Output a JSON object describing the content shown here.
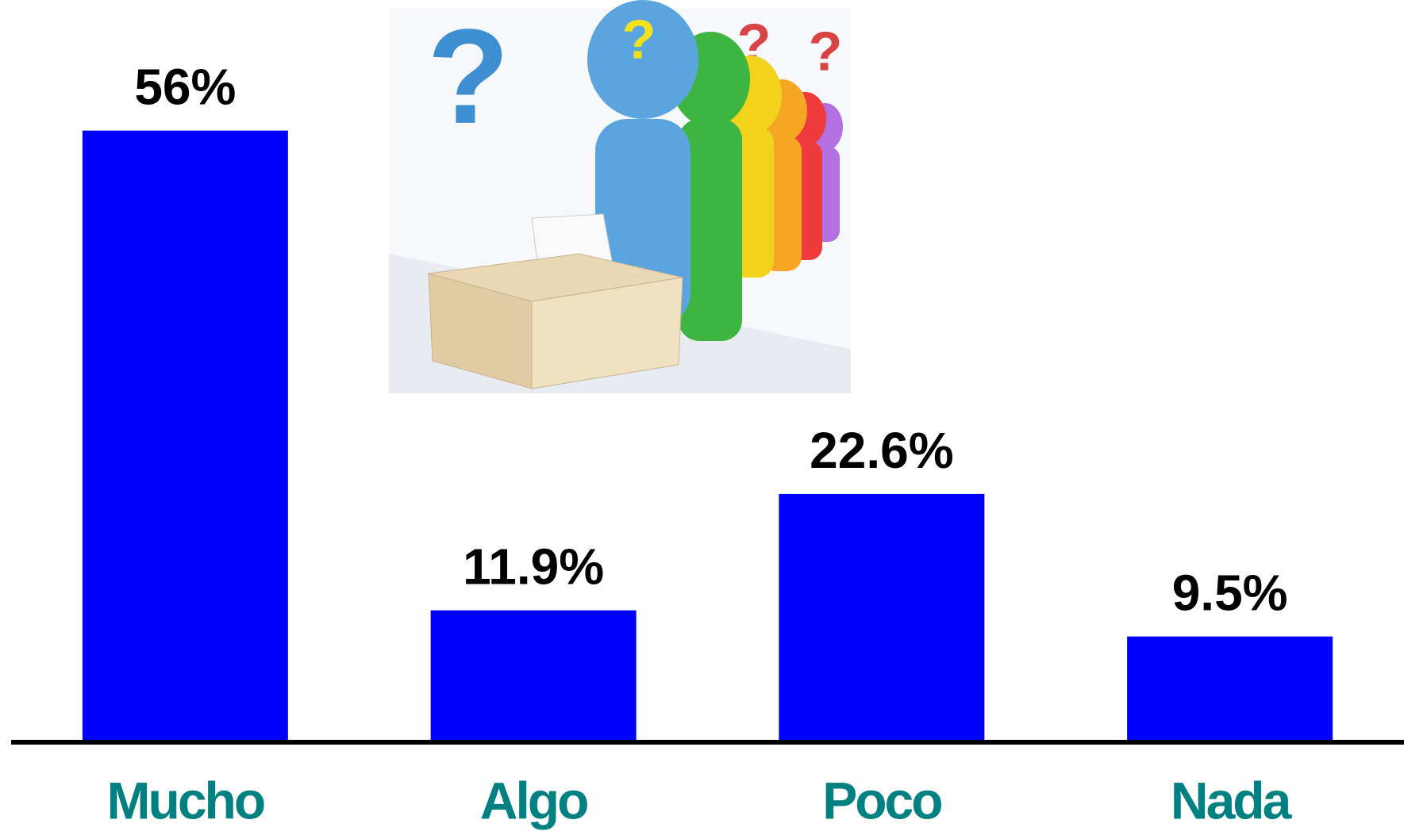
{
  "chart_data": {
    "type": "bar",
    "categories": [
      "Mucho",
      "Algo",
      "Poco",
      "Nada"
    ],
    "values": [
      56,
      11.9,
      22.6,
      9.5
    ],
    "value_labels": [
      "56%",
      "11.9%",
      "22.6%",
      "9.5%"
    ],
    "color": "#0000ff",
    "category_color": "#008080",
    "ylim": [
      0,
      68
    ]
  }
}
